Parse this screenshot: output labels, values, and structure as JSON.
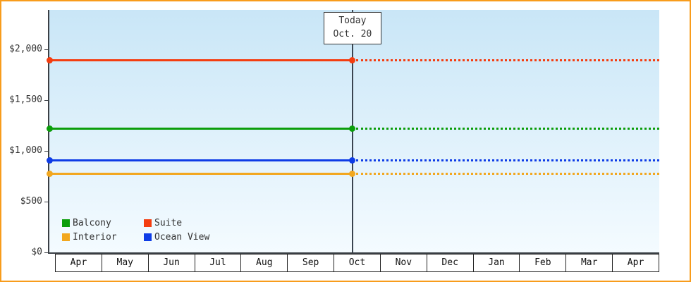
{
  "chart_data": {
    "type": "line",
    "title": "",
    "months": [
      "Apr",
      "May",
      "Jun",
      "Jul",
      "Aug",
      "Sep",
      "Oct",
      "Nov",
      "Dec",
      "Jan",
      "Feb",
      "Mar",
      "Apr"
    ],
    "y_ticks": [
      {
        "label": "$2,000",
        "value": 2000
      },
      {
        "label": "$1,500",
        "value": 1500
      },
      {
        "label": "$1,000",
        "value": 1000
      },
      {
        "label": "$500",
        "value": 500
      },
      {
        "label": "$0",
        "value": 0
      }
    ],
    "ylim": [
      0,
      2390
    ],
    "today": {
      "line1": "Today",
      "line2": "Oct. 20",
      "x_fraction": 0.497
    },
    "series": [
      {
        "name": "Suite",
        "value": 1890,
        "color": "#f43d10"
      },
      {
        "name": "Balcony",
        "value": 1220,
        "color": "#0b9e0b"
      },
      {
        "name": "Ocean View",
        "value": 905,
        "color": "#0e3ce6"
      },
      {
        "name": "Interior",
        "value": 775,
        "color": "#f2a71f"
      }
    ],
    "legend_rows": [
      [
        "Balcony",
        "Suite"
      ],
      [
        "Interior",
        "Ocean View"
      ]
    ],
    "colors": {
      "frame_border": "#f89c1c",
      "plot_bg_top": "#c9e6f7",
      "plot_bg_bottom": "#f4fbff",
      "axis": "#3a3f45"
    }
  }
}
